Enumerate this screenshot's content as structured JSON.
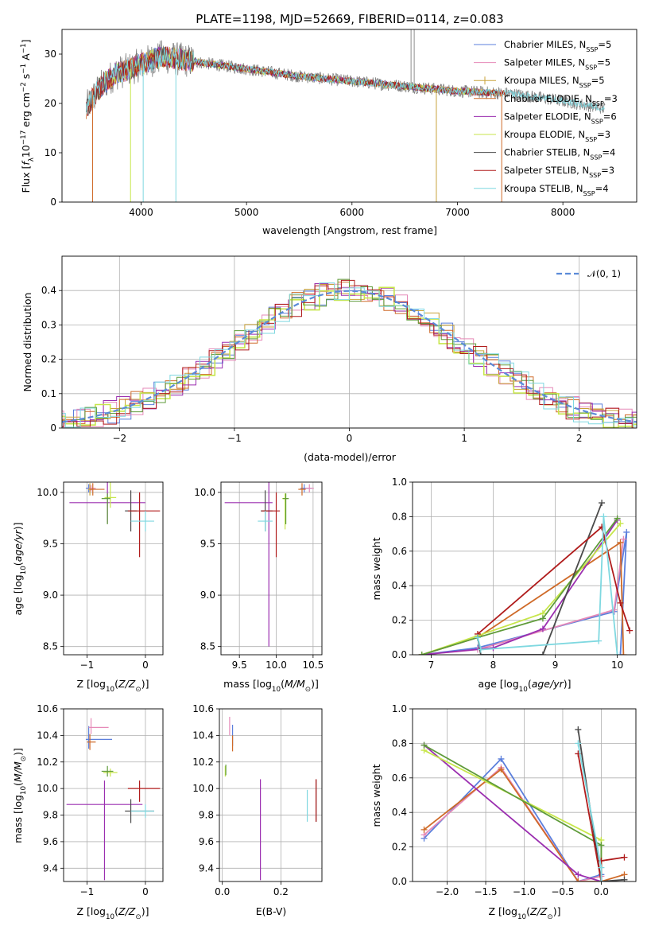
{
  "figure": {
    "title": "PLATE=1198, MJD=52669, FIBERID=0114, z=0.083"
  },
  "colors": {
    "chabrier_miles": "#5b7fdc",
    "salpeter_miles": "#e68ab8",
    "kroupa_miles": "#c8a23a",
    "chabrier_elodie": "#cf6a28",
    "salpeter_elodie": "#9b2fb0",
    "kroupa_elodie": "#c7e64b",
    "chabrier_stelib": "#4a4a4a",
    "salpeter_stelib": "#b01c1c",
    "kroupa_stelib": "#7fd8e0",
    "green": "#5f9b3a",
    "gaussian": "#5b8bd8"
  },
  "chart_data": [
    {
      "id": "spectrum",
      "type": "line",
      "title": "PLATE=1198, MJD=52669, FIBERID=0114, z=0.083",
      "xlabel": "wavelength [Angstrom, rest frame]",
      "ylabel": "Flux [f_λ10^-17 erg cm^-2 s^-1 A^-1]",
      "xlim": [
        3250,
        8700
      ],
      "ylim": [
        0,
        35
      ],
      "xticks": [
        4000,
        5000,
        6000,
        7000,
        8000
      ],
      "yticks": [
        0,
        10,
        20,
        30
      ],
      "legend_position": "top-right",
      "legend": [
        {
          "name": "Chabrier MILES",
          "nssp": "5",
          "color": "#5b7fdc"
        },
        {
          "name": "Salpeter MILES",
          "nssp": "5",
          "color": "#e68ab8"
        },
        {
          "name": "Kroupa MILES",
          "nssp": "5",
          "color": "#c8a23a"
        },
        {
          "name": "Chabrier ELODIE",
          "nssp": "3",
          "color": "#cf6a28"
        },
        {
          "name": "Salpeter ELODIE",
          "nssp": "6",
          "color": "#9b2fb0"
        },
        {
          "name": "Kroupa ELODIE",
          "nssp": "3",
          "color": "#c7e64b"
        },
        {
          "name": "Chabrier STELIB",
          "nssp": "4",
          "color": "#4a4a4a"
        },
        {
          "name": "Salpeter STELIB",
          "nssp": "3",
          "color": "#b01c1c"
        },
        {
          "name": "Kroupa STELIB",
          "nssp": "4",
          "color": "#7fd8e0"
        }
      ],
      "continuum": {
        "x": [
          3480,
          3600,
          3750,
          3900,
          4000,
          4200,
          4500,
          5000,
          5500,
          6000,
          6500,
          7000,
          7500,
          8000,
          8400
        ],
        "y": [
          19,
          23,
          26,
          27,
          28,
          29.5,
          28.5,
          27,
          25.5,
          24.5,
          23.5,
          22.5,
          22,
          20.5,
          19
        ]
      }
    },
    {
      "id": "residuals",
      "type": "histogram",
      "xlabel": "(data-model)/error",
      "ylabel": "Normed distribution",
      "xlim": [
        -2.5,
        2.5
      ],
      "ylim": [
        0,
        0.5
      ],
      "xticks": [
        -2,
        -1,
        0,
        1,
        2
      ],
      "yticks": [
        0,
        0.1,
        0.2,
        0.3,
        0.4
      ],
      "gaussian_label": "𝒩(0, 1)",
      "legend_position": "top-right"
    },
    {
      "id": "age_vs_Z",
      "type": "errorbar",
      "xlabel": "Z [log10(Z/Z⊙)]",
      "ylabel": "age [log10(age/yr)]",
      "xlim": [
        -1.4,
        0.3
      ],
      "ylim": [
        8.42,
        10.1
      ],
      "xticks": [
        -1,
        0
      ],
      "yticks": [
        8.5,
        9.0,
        9.5,
        10.0
      ],
      "points": [
        {
          "x": -0.97,
          "y": 10.04,
          "xerr": [
            0.05,
            0.05
          ],
          "yerr": [
            0.04,
            0.04
          ],
          "color": "#5b7fdc"
        },
        {
          "x": -0.93,
          "y": 10.04,
          "xerr": [
            0.04,
            0.08
          ],
          "yerr": [
            0.03,
            0.03
          ],
          "color": "#e68ab8"
        },
        {
          "x": -0.95,
          "y": 10.03,
          "xerr": [
            0.03,
            0.05
          ],
          "yerr": [
            0.06,
            0.06
          ],
          "color": "#c8a23a"
        },
        {
          "x": -0.9,
          "y": 10.03,
          "xerr": [
            0.05,
            0.2
          ],
          "yerr": [
            0.06,
            0.06
          ],
          "color": "#cf6a28"
        },
        {
          "x": -0.65,
          "y": 9.9,
          "xerr": [
            0.65,
            0.65
          ],
          "yerr": [
            0.2,
            1.4
          ],
          "color": "#9b2fb0"
        },
        {
          "x": -0.6,
          "y": 9.95,
          "xerr": [
            0.1,
            0.1
          ],
          "yerr": [
            0.1,
            0.3
          ],
          "color": "#c7e64b"
        },
        {
          "x": -0.65,
          "y": 9.94,
          "xerr": [
            0.1,
            0.05
          ],
          "yerr": [
            0.25,
            0.05
          ],
          "color": "#5f9b3a"
        },
        {
          "x": -0.25,
          "y": 9.82,
          "xerr": [
            0.1,
            0.1
          ],
          "yerr": [
            0.2,
            0.2
          ],
          "color": "#4a4a4a"
        },
        {
          "x": -0.1,
          "y": 9.82,
          "xerr": [
            0.2,
            0.35
          ],
          "yerr": [
            0.45,
            0.18
          ],
          "color": "#b01c1c"
        },
        {
          "x": 0.0,
          "y": 9.72,
          "xerr": [
            0.25,
            0.15
          ],
          "yerr": [
            0.1,
            0.1
          ],
          "color": "#7fd8e0"
        }
      ]
    },
    {
      "id": "age_vs_mass",
      "type": "errorbar",
      "xlabel": "mass [log10(M/M⊙)]",
      "ylabel": "",
      "xlim": [
        9.25,
        10.62
      ],
      "ylim": [
        8.42,
        10.1
      ],
      "xticks": [
        9.5,
        10.0,
        10.5
      ],
      "yticks": [
        8.5,
        9.0,
        9.5,
        10.0
      ],
      "points": [
        {
          "x": 10.38,
          "y": 10.04,
          "xerr": [
            0.05,
            0.1
          ],
          "yerr": [
            0.04,
            0.04
          ],
          "color": "#5b7fdc"
        },
        {
          "x": 10.45,
          "y": 10.04,
          "xerr": [
            0.06,
            0.06
          ],
          "yerr": [
            0.04,
            0.04
          ],
          "color": "#e68ab8"
        },
        {
          "x": 10.35,
          "y": 10.03,
          "xerr": [
            0.05,
            0.05
          ],
          "yerr": [
            0.06,
            0.06
          ],
          "color": "#cf6a28"
        },
        {
          "x": 9.9,
          "y": 9.9,
          "xerr": [
            0.6,
            0.05
          ],
          "yerr": [
            1.4,
            0.2
          ],
          "color": "#9b2fb0"
        },
        {
          "x": 10.12,
          "y": 9.94,
          "xerr": [
            0.04,
            0.04
          ],
          "yerr": [
            0.3,
            0.05
          ],
          "color": "#c7e64b"
        },
        {
          "x": 10.13,
          "y": 9.94,
          "xerr": [
            0.04,
            0.04
          ],
          "yerr": [
            0.25,
            0.05
          ],
          "color": "#5f9b3a"
        },
        {
          "x": 9.85,
          "y": 9.82,
          "xerr": [
            0.06,
            0.1
          ],
          "yerr": [
            0.2,
            0.2
          ],
          "color": "#4a4a4a"
        },
        {
          "x": 10.0,
          "y": 9.82,
          "xerr": [
            0.2,
            0.05
          ],
          "yerr": [
            0.45,
            0.18
          ],
          "color": "#b01c1c"
        },
        {
          "x": 9.85,
          "y": 9.72,
          "xerr": [
            0.1,
            0.1
          ],
          "yerr": [
            0.1,
            0.1
          ],
          "color": "#7fd8e0"
        }
      ]
    },
    {
      "id": "massweight_vs_age",
      "type": "line",
      "xlabel": "age [log10(age/yr)]",
      "ylabel": "mass weight",
      "xlim": [
        6.7,
        10.3
      ],
      "ylim": [
        0,
        1.0
      ],
      "xticks": [
        7,
        8,
        9,
        10
      ],
      "yticks": [
        0.0,
        0.2,
        0.4,
        0.6,
        0.8,
        1.0
      ],
      "series": [
        {
          "color": "#5b7fdc",
          "x": [
            6.85,
            7.75,
            9.95,
            10.15,
            10.05
          ],
          "y": [
            0.0,
            0.04,
            0.25,
            0.71,
            0.0
          ]
        },
        {
          "color": "#e68ab8",
          "x": [
            6.85,
            7.75,
            9.95,
            10.1
          ],
          "y": [
            0.0,
            0.03,
            0.26,
            0.67
          ]
        },
        {
          "color": "#cf6a28",
          "x": [
            6.85,
            7.75,
            10.05,
            10.1
          ],
          "y": [
            0.0,
            0.1,
            0.65,
            0.0
          ]
        },
        {
          "color": "#9b2fb0",
          "x": [
            6.85,
            8.0,
            8.8,
            10.0
          ],
          "y": [
            0.0,
            0.04,
            0.15,
            0.78
          ]
        },
        {
          "color": "#c7e64b",
          "x": [
            6.85,
            7.75,
            8.8,
            10.05
          ],
          "y": [
            0.0,
            0.11,
            0.24,
            0.76
          ]
        },
        {
          "color": "#5f9b3a",
          "x": [
            6.85,
            7.75,
            8.8,
            10.0
          ],
          "y": [
            0.0,
            0.1,
            0.21,
            0.79
          ]
        },
        {
          "color": "#4a4a4a",
          "x": [
            7.75,
            7.8,
            8.8,
            9.75
          ],
          "y": [
            0.1,
            0.0,
            0.0,
            0.88
          ]
        },
        {
          "color": "#b01c1c",
          "x": [
            7.75,
            9.75,
            10.05,
            10.2
          ],
          "y": [
            0.12,
            0.74,
            0.3,
            0.14
          ]
        },
        {
          "color": "#7fd8e0",
          "x": [
            7.75,
            7.8,
            9.7,
            9.78,
            10.0
          ],
          "y": [
            0.1,
            0.03,
            0.08,
            0.8,
            0.0
          ]
        }
      ]
    },
    {
      "id": "mass_vs_Z",
      "type": "errorbar",
      "xlabel": "Z [log10(Z/Z⊙)]",
      "ylabel": "mass [log10(M/M⊙)]",
      "xlim": [
        -1.4,
        0.3
      ],
      "ylim": [
        9.3,
        10.6
      ],
      "xticks": [
        -1,
        0
      ],
      "yticks": [
        9.4,
        9.6,
        9.8,
        10.0,
        10.2,
        10.4,
        10.6
      ],
      "points": [
        {
          "x": -0.97,
          "y": 10.37,
          "xerr": [
            0.05,
            0.4
          ],
          "yerr": [
            0.07,
            0.1
          ],
          "color": "#5b7fdc"
        },
        {
          "x": -0.93,
          "y": 10.46,
          "xerr": [
            0.04,
            0.3
          ],
          "yerr": [
            0.05,
            0.07
          ],
          "color": "#e68ab8"
        },
        {
          "x": -0.95,
          "y": 10.35,
          "xerr": [
            0.05,
            0.1
          ],
          "yerr": [
            0.06,
            0.06
          ],
          "color": "#cf6a28"
        },
        {
          "x": -0.7,
          "y": 9.88,
          "xerr": [
            0.65,
            0.65
          ],
          "yerr": [
            0.57,
            0.18
          ],
          "color": "#9b2fb0"
        },
        {
          "x": -0.6,
          "y": 10.12,
          "xerr": [
            0.12,
            0.12
          ],
          "yerr": [
            0.03,
            0.03
          ],
          "color": "#c7e64b"
        },
        {
          "x": -0.65,
          "y": 10.13,
          "xerr": [
            0.1,
            0.1
          ],
          "yerr": [
            0.04,
            0.04
          ],
          "color": "#5f9b3a"
        },
        {
          "x": -0.25,
          "y": 9.83,
          "xerr": [
            0.1,
            0.4
          ],
          "yerr": [
            0.09,
            0.09
          ],
          "color": "#4a4a4a"
        },
        {
          "x": -0.1,
          "y": 10.0,
          "xerr": [
            0.2,
            0.35
          ],
          "yerr": [
            0.1,
            0.06
          ],
          "color": "#b01c1c"
        },
        {
          "x": 0.0,
          "y": 9.83,
          "xerr": [
            0.25,
            0.15
          ],
          "yerr": [
            0.05,
            0.05
          ],
          "color": "#7fd8e0"
        }
      ]
    },
    {
      "id": "mass_vs_ebv",
      "type": "errorbar",
      "xlabel": "E(B-V)",
      "ylabel": "",
      "xlim": [
        -0.01,
        0.34
      ],
      "ylim": [
        9.3,
        10.6
      ],
      "xticks": [
        0.0,
        0.2
      ],
      "yticks": [
        9.4,
        9.6,
        9.8,
        10.0,
        10.2,
        10.4,
        10.6
      ],
      "points": [
        {
          "x": 0.035,
          "y": 10.38,
          "xerr": [
            0,
            0
          ],
          "yerr": [
            0.06,
            0.1
          ],
          "color": "#5b7fdc"
        },
        {
          "x": 0.025,
          "y": 10.47,
          "xerr": [
            0,
            0
          ],
          "yerr": [
            0.07,
            0.07
          ],
          "color": "#e68ab8"
        },
        {
          "x": 0.035,
          "y": 10.34,
          "xerr": [
            0,
            0
          ],
          "yerr": [
            0.06,
            0.06
          ],
          "color": "#cf6a28"
        },
        {
          "x": 0.13,
          "y": 9.78,
          "xerr": [
            0,
            0
          ],
          "yerr": [
            0.47,
            0.29
          ],
          "color": "#9b2fb0"
        },
        {
          "x": 0.01,
          "y": 10.13,
          "xerr": [
            0,
            0
          ],
          "yerr": [
            0.04,
            0.04
          ],
          "color": "#c7e64b"
        },
        {
          "x": 0.012,
          "y": 10.14,
          "xerr": [
            0,
            0
          ],
          "yerr": [
            0.04,
            0.04
          ],
          "color": "#5f9b3a"
        },
        {
          "x": 0.32,
          "y": 9.9,
          "xerr": [
            0,
            0
          ],
          "yerr": [
            0.15,
            0.17
          ],
          "color": "#4a4a4a"
        },
        {
          "x": 0.32,
          "y": 9.9,
          "xerr": [
            0,
            0
          ],
          "yerr": [
            0.15,
            0.17
          ],
          "color": "#b01c1c"
        },
        {
          "x": 0.29,
          "y": 9.87,
          "xerr": [
            0,
            0
          ],
          "yerr": [
            0.12,
            0.12
          ],
          "color": "#7fd8e0"
        }
      ]
    },
    {
      "id": "massweight_vs_Z",
      "type": "line",
      "xlabel": "Z [log10(Z/Z⊙)]",
      "ylabel": "mass weight",
      "xlim": [
        -2.45,
        0.45
      ],
      "ylim": [
        0,
        1.0
      ],
      "xticks": [
        -2.0,
        -1.5,
        -1.0,
        -0.5,
        0.0
      ],
      "yticks": [
        0.0,
        0.2,
        0.4,
        0.6,
        0.8,
        1.0
      ],
      "series": [
        {
          "color": "#5b7fdc",
          "x": [
            -2.3,
            -1.3,
            -0.3,
            0.0
          ],
          "y": [
            0.25,
            0.71,
            0.0,
            0.04
          ]
        },
        {
          "color": "#e68ab8",
          "x": [
            -2.3,
            -1.3,
            -0.3,
            0.0
          ],
          "y": [
            0.27,
            0.66,
            0.0,
            0.03
          ]
        },
        {
          "color": "#cf6a28",
          "x": [
            -2.3,
            -1.3,
            -0.3,
            0.0,
            0.3
          ],
          "y": [
            0.3,
            0.65,
            0.0,
            0.0,
            0.04
          ]
        },
        {
          "color": "#9b2fb0",
          "x": [
            -2.3,
            -0.3,
            0.0
          ],
          "y": [
            0.79,
            0.04,
            0.0
          ]
        },
        {
          "color": "#c7e64b",
          "x": [
            -2.3,
            0.0,
            0.0
          ],
          "y": [
            0.76,
            0.24,
            0.0
          ]
        },
        {
          "color": "#5f9b3a",
          "x": [
            -2.3,
            0.0,
            0.0
          ],
          "y": [
            0.79,
            0.21,
            0.0
          ]
        },
        {
          "color": "#4a4a4a",
          "x": [
            -0.3,
            0.0,
            0.3
          ],
          "y": [
            0.88,
            0.0,
            0.01
          ]
        },
        {
          "color": "#b01c1c",
          "x": [
            -0.3,
            0.0,
            0.0,
            0.3
          ],
          "y": [
            0.74,
            0.0,
            0.12,
            0.14
          ]
        },
        {
          "color": "#7fd8e0",
          "x": [
            -0.3,
            0.0,
            0.0
          ],
          "y": [
            0.8,
            0.08,
            0.0
          ]
        }
      ]
    }
  ]
}
